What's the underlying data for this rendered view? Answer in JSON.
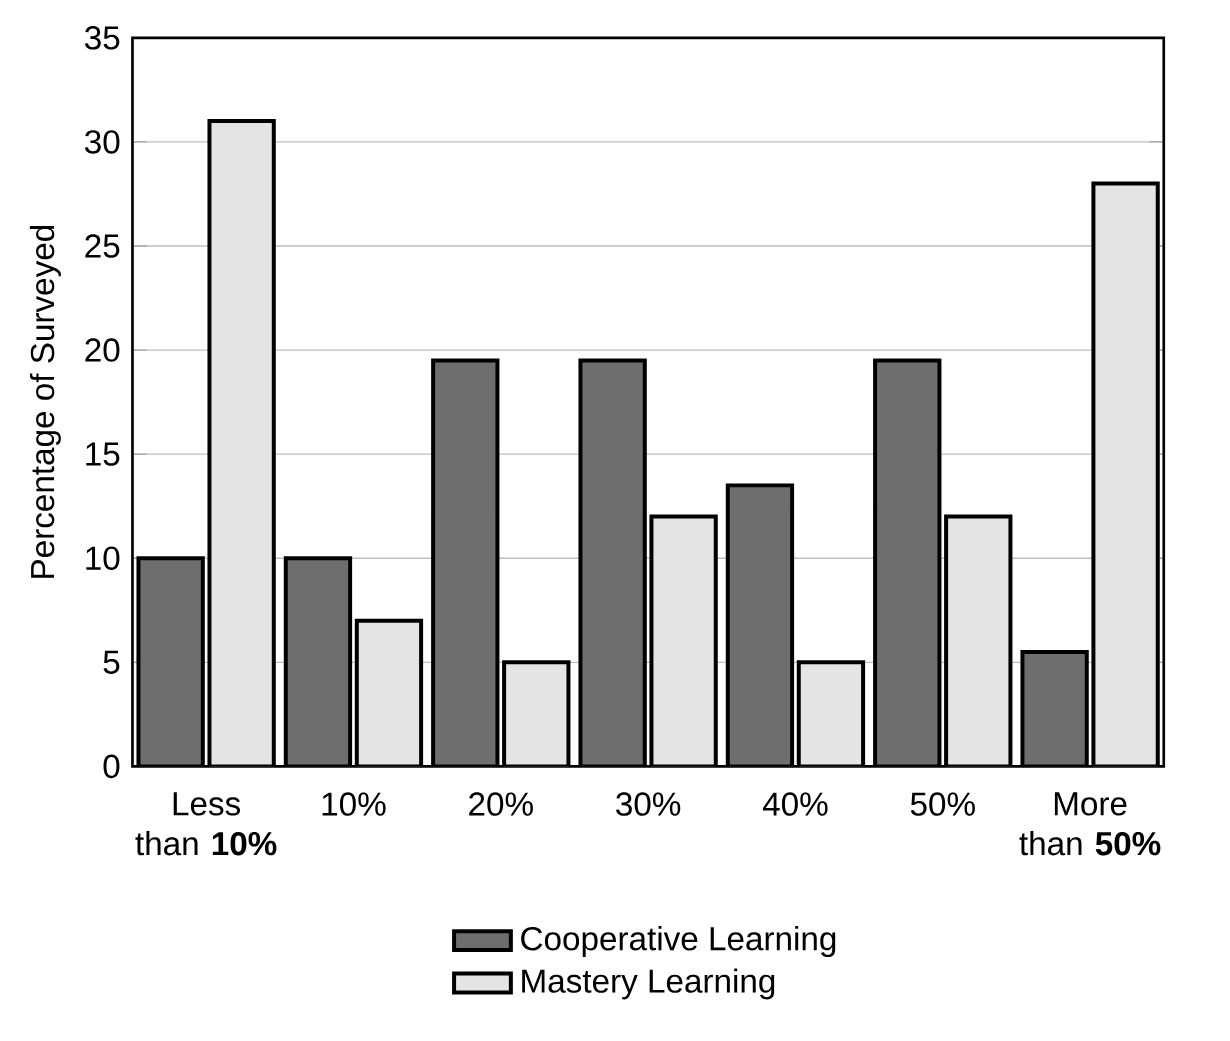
{
  "chart_data": {
    "type": "bar",
    "ylabel": "Percentage of Surveyed",
    "categories": [
      "Less than **10%**",
      "10%",
      "20%",
      "30%",
      "40%",
      "50%",
      "More than **50%**"
    ],
    "series": [
      {
        "name": "Cooperative Learning",
        "color": "#6e6e6e",
        "values": [
          10,
          10,
          19.5,
          19.5,
          13.5,
          19.5,
          5.5
        ]
      },
      {
        "name": "Mastery Learning",
        "color": "#e4e4e4",
        "values": [
          31,
          7,
          5,
          12,
          5,
          12,
          28
        ]
      }
    ],
    "ylim": [
      0,
      35
    ],
    "yticks": [
      0,
      5,
      10,
      15,
      20,
      25,
      30,
      35
    ],
    "grid": "y",
    "legend": "bottom"
  }
}
